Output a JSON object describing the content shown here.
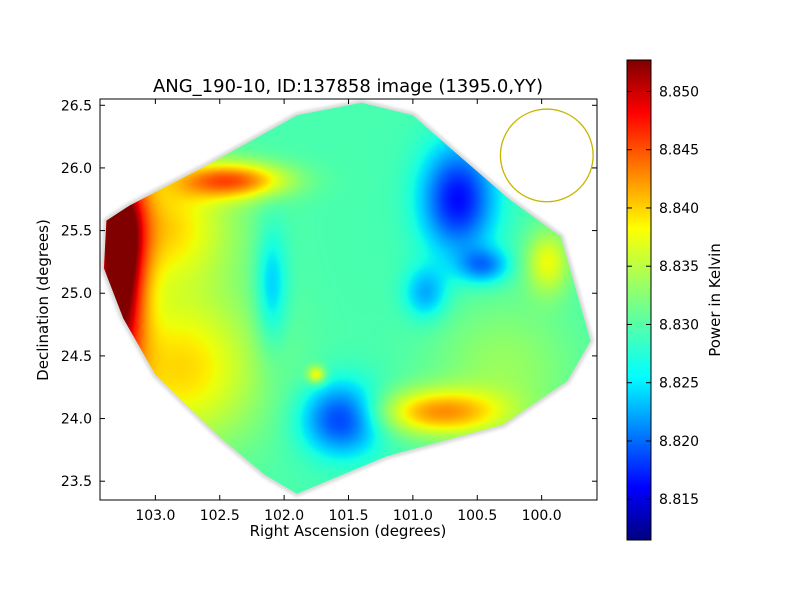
{
  "chart_data": {
    "type": "heatmap",
    "title": "ANG_190-10, ID:137858 image (1395.0,YY)",
    "xlabel": "Right Ascension (degrees)",
    "ylabel": "Declination (degrees)",
    "x_axis_inverted": true,
    "xlim": [
      103.43,
      99.57
    ],
    "ylim": [
      23.35,
      26.55
    ],
    "x_ticks": [
      {
        "value": 103.0,
        "label": "103.0"
      },
      {
        "value": 102.5,
        "label": "102.5"
      },
      {
        "value": 102.0,
        "label": "102.0"
      },
      {
        "value": 101.5,
        "label": "101.5"
      },
      {
        "value": 101.0,
        "label": "101.0"
      },
      {
        "value": 100.5,
        "label": "100.5"
      },
      {
        "value": 100.0,
        "label": "100.0"
      }
    ],
    "y_ticks": [
      {
        "value": 23.5,
        "label": "23.5"
      },
      {
        "value": 24.0,
        "label": "24.0"
      },
      {
        "value": 24.5,
        "label": "24.5"
      },
      {
        "value": 25.0,
        "label": "25.0"
      },
      {
        "value": 25.5,
        "label": "25.5"
      },
      {
        "value": 26.0,
        "label": "26.0"
      },
      {
        "value": 26.5,
        "label": "26.5"
      }
    ],
    "colorbar": {
      "label": "Power in Kelvin",
      "colormap": "jet",
      "range": [
        8.8115,
        8.8527
      ],
      "ticks": [
        {
          "value": 8.815,
          "label": "8.815"
        },
        {
          "value": 8.82,
          "label": "8.820"
        },
        {
          "value": 8.825,
          "label": "8.825"
        },
        {
          "value": 8.83,
          "label": "8.830"
        },
        {
          "value": 8.835,
          "label": "8.835"
        },
        {
          "value": 8.84,
          "label": "8.840"
        },
        {
          "value": 8.845,
          "label": "8.845"
        },
        {
          "value": 8.85,
          "label": "8.850"
        }
      ]
    },
    "background_value": 8.8295,
    "footprint_polygon": [
      [
        103.38,
        25.58
      ],
      [
        103.2,
        25.7
      ],
      [
        102.6,
        26.02
      ],
      [
        101.9,
        26.42
      ],
      [
        101.4,
        26.52
      ],
      [
        101.0,
        26.42
      ],
      [
        100.7,
        26.15
      ],
      [
        100.25,
        25.75
      ],
      [
        99.85,
        25.45
      ],
      [
        99.62,
        24.62
      ],
      [
        99.8,
        24.3
      ],
      [
        100.3,
        23.95
      ],
      [
        101.2,
        23.7
      ],
      [
        101.9,
        23.4
      ],
      [
        102.15,
        23.55
      ],
      [
        102.5,
        23.85
      ],
      [
        103.0,
        24.35
      ],
      [
        103.25,
        24.8
      ],
      [
        103.4,
        25.2
      ]
    ],
    "features": [
      {
        "ra": 103.28,
        "dec": 25.25,
        "sigma_ra": 0.14,
        "sigma_dec": 0.7,
        "amplitude": 0.0235
      },
      {
        "ra": 102.95,
        "dec": 25.55,
        "sigma_ra": 0.4,
        "sigma_dec": 0.35,
        "amplitude": 0.01
      },
      {
        "ra": 102.8,
        "dec": 24.4,
        "sigma_ra": 0.45,
        "sigma_dec": 0.45,
        "amplitude": 0.01
      },
      {
        "ra": 102.4,
        "dec": 25.9,
        "sigma_ra": 0.3,
        "sigma_dec": 0.1,
        "amplitude": 0.014
      },
      {
        "ra": 102.1,
        "dec": 25.05,
        "sigma_ra": 0.09,
        "sigma_dec": 0.35,
        "amplitude": -0.0055
      },
      {
        "ra": 100.65,
        "dec": 25.75,
        "sigma_ra": 0.2,
        "sigma_dec": 0.3,
        "amplitude": -0.0125
      },
      {
        "ra": 100.45,
        "dec": 25.22,
        "sigma_ra": 0.14,
        "sigma_dec": 0.1,
        "amplitude": -0.0075
      },
      {
        "ra": 100.9,
        "dec": 25.0,
        "sigma_ra": 0.12,
        "sigma_dec": 0.15,
        "amplitude": -0.006
      },
      {
        "ra": 101.55,
        "dec": 24.0,
        "sigma_ra": 0.22,
        "sigma_dec": 0.2,
        "amplitude": -0.011
      },
      {
        "ra": 100.8,
        "dec": 24.05,
        "sigma_ra": 0.35,
        "sigma_dec": 0.13,
        "amplitude": 0.012
      },
      {
        "ra": 99.95,
        "dec": 25.25,
        "sigma_ra": 0.12,
        "sigma_dec": 0.18,
        "amplitude": 0.008
      },
      {
        "ra": 101.75,
        "dec": 24.35,
        "sigma_ra": 0.05,
        "sigma_dec": 0.05,
        "amplitude": 0.009
      },
      {
        "ra": 100.3,
        "dec": 24.4,
        "sigma_ra": 0.4,
        "sigma_dec": 0.4,
        "amplitude": 0.004
      }
    ],
    "beam_marker": {
      "shape": "circle",
      "center_ra": 99.96,
      "center_dec": 26.1,
      "radius_deg": 0.36,
      "color": "#c8b400"
    },
    "grid": false,
    "legend": "none"
  }
}
